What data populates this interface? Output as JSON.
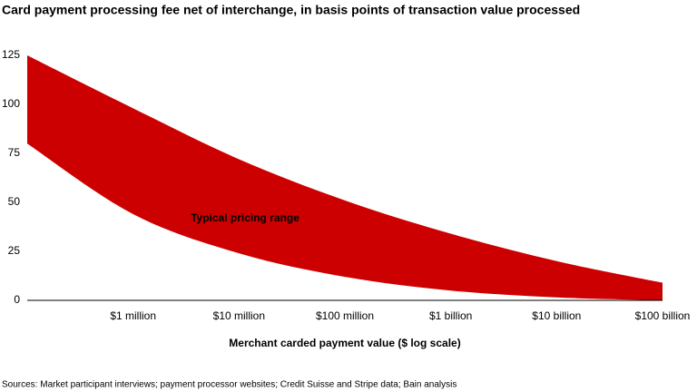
{
  "chart_data": {
    "type": "range-area",
    "title": "Card payment processing fee net of interchange, in basis points of transaction value processed",
    "x_label": "Merchant carded payment value ($ log scale)",
    "annotation": "Typical pricing range",
    "source": "Sources: Market participant interviews; payment processor websites; Credit Suisse and Stripe data; Bain analysis",
    "x": [
      100000,
      1000000,
      10000000,
      100000000,
      1000000000,
      10000000000,
      100000000000
    ],
    "high": [
      125,
      98,
      72,
      51,
      34,
      20,
      9
    ],
    "low": [
      80,
      44,
      24,
      12,
      5,
      1.5,
      0
    ],
    "color": "#cc0000",
    "x_log": true,
    "xlim": [
      100000,
      100000000000
    ],
    "xticks": [
      {
        "value": 1000000,
        "label": "$1 million"
      },
      {
        "value": 10000000,
        "label": "$10 million"
      },
      {
        "value": 100000000,
        "label": "$100 million"
      },
      {
        "value": 1000000000,
        "label": "$1 billion"
      },
      {
        "value": 10000000000,
        "label": "$10 billion"
      },
      {
        "value": 100000000000,
        "label": "$100 billion"
      }
    ],
    "ylim": [
      0,
      125
    ],
    "yticks": [
      0,
      25,
      50,
      75,
      100,
      125
    ],
    "grid": false
  }
}
